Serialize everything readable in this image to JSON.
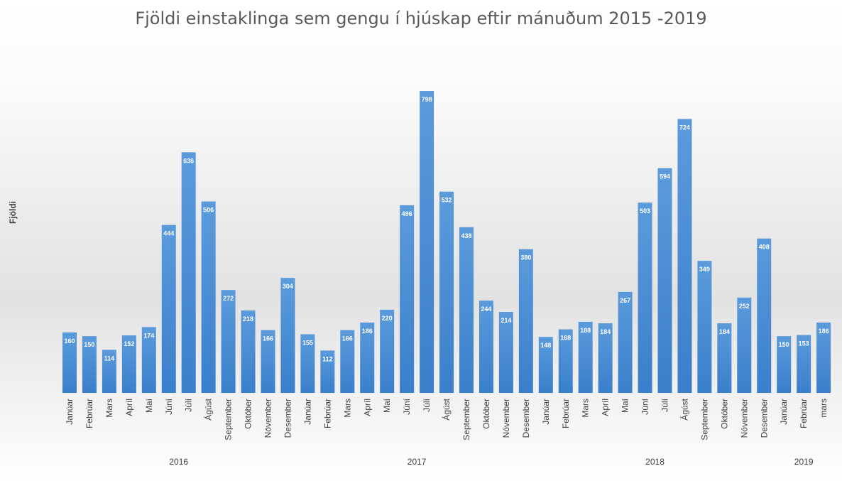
{
  "chart_data": {
    "type": "bar",
    "title": "Fjöldi einstaklinga sem gengu í hjúskap eftir mánuðum 2015 -2019",
    "xlabel": "",
    "ylabel": "Fjöldi",
    "ylim": [
      0,
      800
    ],
    "grid": false,
    "bar_color": "#4a8fd6",
    "categories": [
      "Janúar",
      "Febrúar",
      "Mars",
      "Apríl",
      "Maí",
      "Júní",
      "Júlí",
      "Ágúst",
      "September",
      "Október",
      "Nóvember",
      "Desember",
      "Janúar",
      "Febrúar",
      "Mars",
      "Apríl",
      "Maí",
      "Júní",
      "Júlí",
      "Ágúst",
      "September",
      "Október",
      "Nóvember",
      "Desember",
      "Janúar",
      "Febrúar",
      "Mars",
      "Apríl",
      "Maí",
      "Júní",
      "Júlí",
      "Ágúst",
      "September",
      "Október",
      "Nóvember",
      "Desember",
      "Janúar",
      "Febrúar",
      "mars"
    ],
    "values": [
      160,
      150,
      114,
      152,
      174,
      444,
      636,
      506,
      272,
      218,
      166,
      304,
      155,
      112,
      166,
      186,
      220,
      496,
      798,
      532,
      438,
      244,
      214,
      380,
      148,
      168,
      188,
      184,
      267,
      503,
      594,
      724,
      349,
      184,
      252,
      408,
      150,
      153,
      186
    ],
    "groups": [
      {
        "label": "2016",
        "count": 12
      },
      {
        "label": "2017",
        "count": 12
      },
      {
        "label": "2018",
        "count": 12
      },
      {
        "label": "2019",
        "count": 3
      }
    ]
  }
}
